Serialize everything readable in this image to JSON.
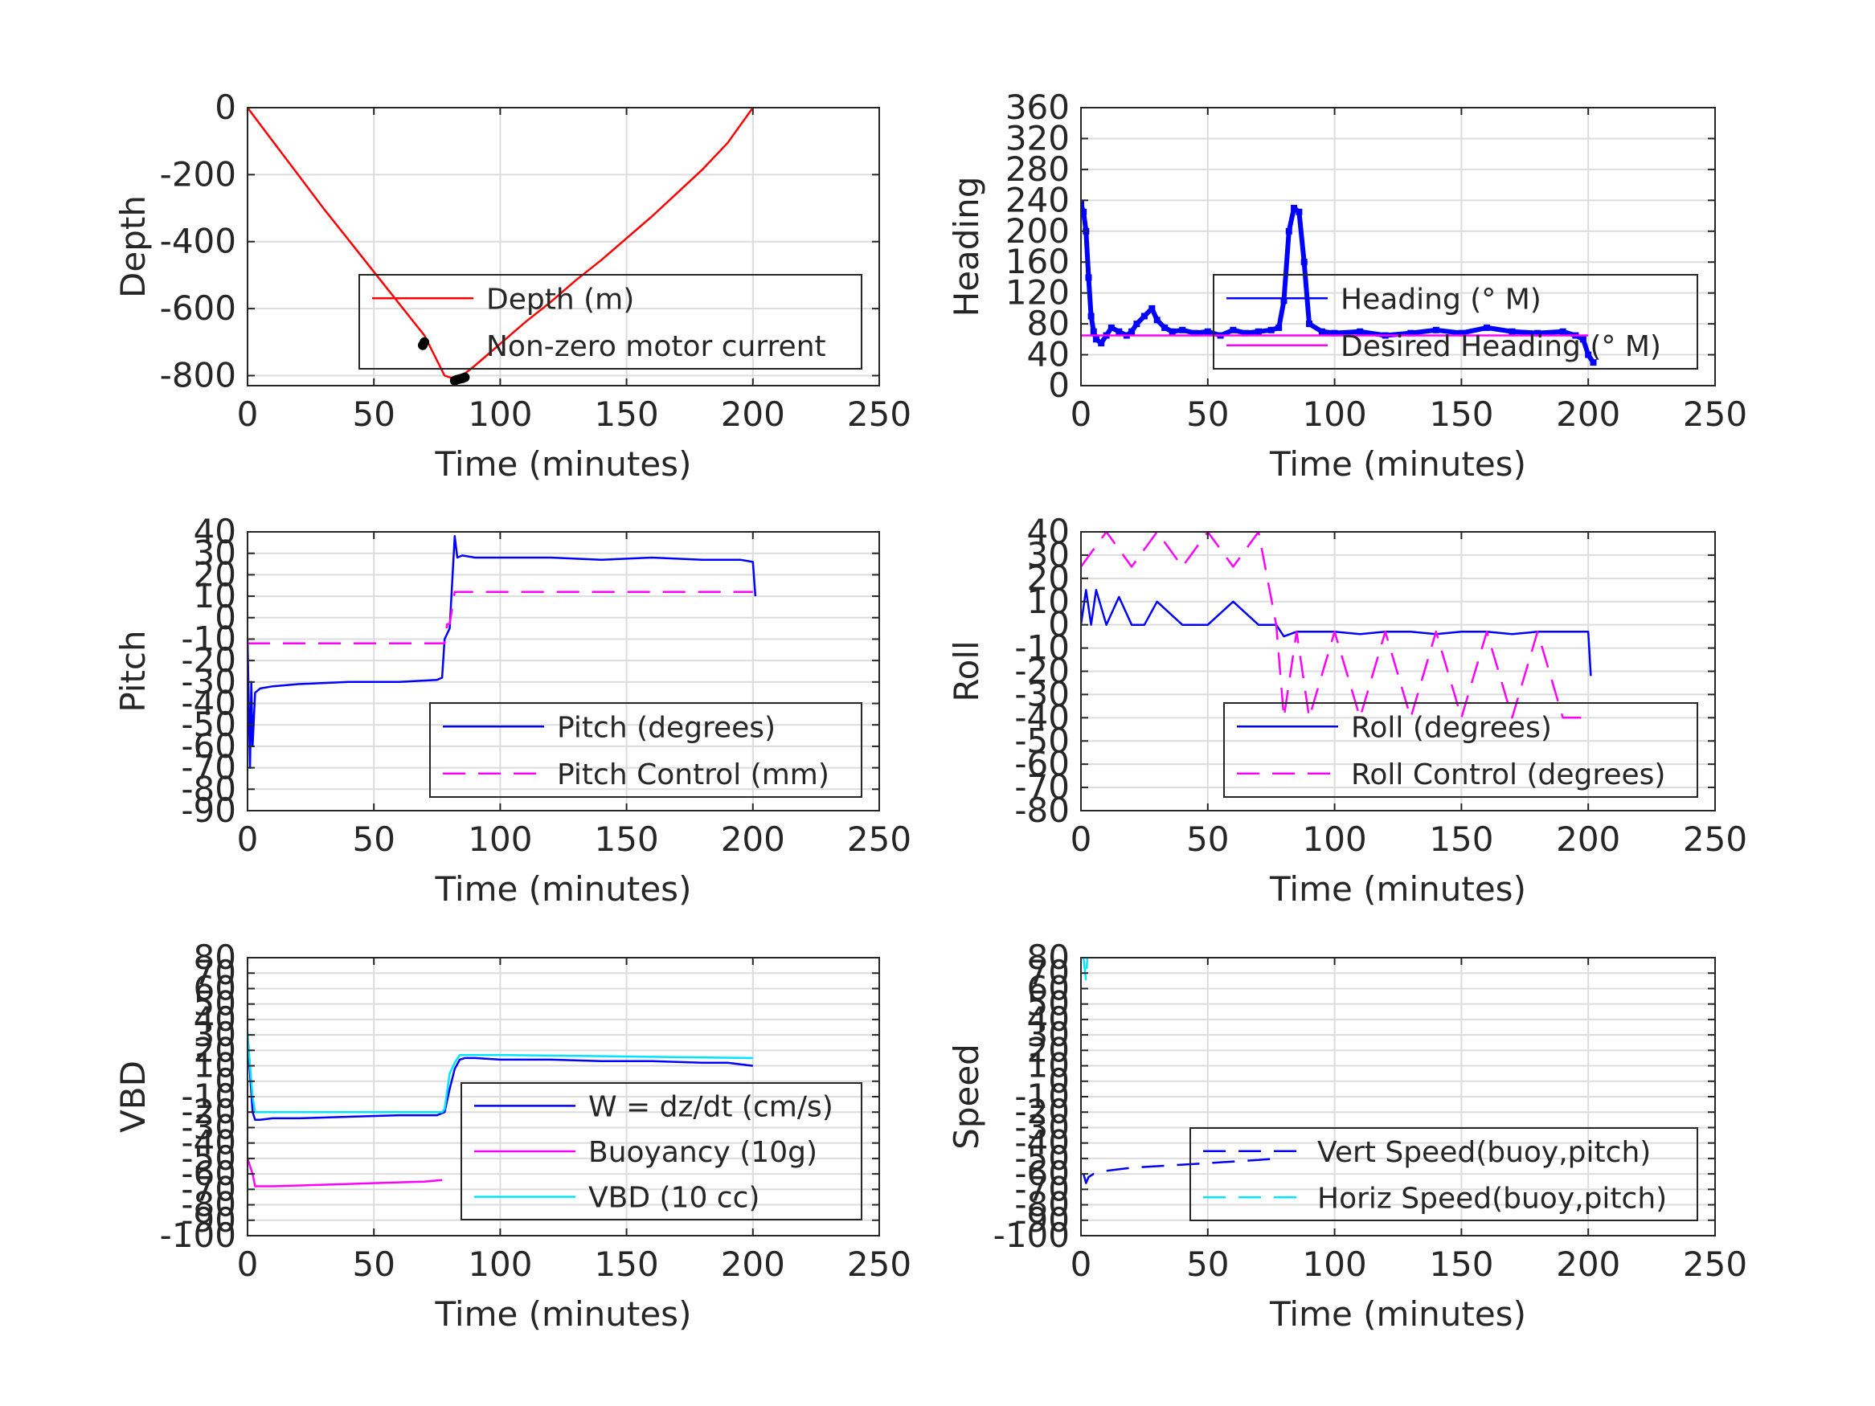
{
  "chart_data": [
    {
      "type": "line",
      "xlabel": "Time (minutes)",
      "ylabel": "Depth",
      "xlim": [
        0,
        250
      ],
      "ylim": [
        -830,
        0
      ],
      "xticks": [
        0,
        50,
        100,
        150,
        200,
        250
      ],
      "yticks": [
        0,
        -200,
        -400,
        -600,
        -800
      ],
      "ytick_labels": [
        "0",
        "-200",
        "-400",
        "-600",
        "-800"
      ],
      "grid": true,
      "legend_placement": "center-right",
      "series": [
        {
          "name": "Depth (m)",
          "color": "#ff0000",
          "style": "solid",
          "x": [
            0,
            10,
            20,
            30,
            40,
            50,
            60,
            70,
            78,
            82,
            85,
            90,
            100,
            110,
            120,
            130,
            140,
            150,
            160,
            170,
            180,
            190,
            200
          ],
          "y": [
            0,
            -100,
            -200,
            -300,
            -395,
            -490,
            -585,
            -680,
            -800,
            -810,
            -800,
            -770,
            -705,
            -640,
            -580,
            -515,
            -455,
            -390,
            -325,
            -255,
            -185,
            -105,
            0
          ]
        },
        {
          "name": "Non-zero motor current",
          "color": "#000000",
          "style": "points",
          "x": [
            70,
            82,
            83,
            84,
            85,
            86
          ],
          "y": [
            -700,
            -815,
            -812,
            -810,
            -808,
            -805
          ]
        }
      ]
    },
    {
      "type": "line",
      "xlabel": "Time (minutes)",
      "ylabel": "Heading",
      "xlim": [
        0,
        250
      ],
      "ylim": [
        0,
        360
      ],
      "xticks": [
        0,
        50,
        100,
        150,
        200,
        250
      ],
      "yticks": [
        0,
        40,
        80,
        120,
        160,
        200,
        240,
        280,
        320,
        360
      ],
      "ytick_labels": [
        "0",
        "40",
        "80",
        "120",
        "160",
        "200",
        "240",
        "280",
        "320",
        "360"
      ],
      "grid": true,
      "legend_placement": "center-right",
      "series": [
        {
          "name": "Heading (° M)",
          "color": "#0000ff",
          "style": "dots",
          "x": [
            0,
            1,
            2,
            3,
            4,
            5,
            6,
            8,
            10,
            12,
            15,
            18,
            20,
            22,
            25,
            28,
            30,
            33,
            36,
            40,
            45,
            50,
            55,
            60,
            65,
            70,
            75,
            78,
            80,
            82,
            84,
            86,
            88,
            90,
            95,
            100,
            110,
            120,
            130,
            140,
            150,
            160,
            170,
            180,
            190,
            195,
            198,
            200,
            202
          ],
          "y": [
            235,
            225,
            200,
            140,
            90,
            70,
            60,
            55,
            65,
            75,
            70,
            65,
            70,
            80,
            90,
            100,
            85,
            75,
            70,
            72,
            68,
            70,
            65,
            72,
            68,
            70,
            72,
            75,
            110,
            200,
            230,
            225,
            160,
            80,
            70,
            68,
            70,
            65,
            68,
            72,
            68,
            75,
            70,
            68,
            70,
            65,
            60,
            40,
            30
          ]
        },
        {
          "name": "Desired Heading (° M)",
          "color": "#ff00ff",
          "style": "solid",
          "x": [
            0,
            200
          ],
          "y": [
            65,
            65
          ]
        }
      ]
    },
    {
      "type": "line",
      "xlabel": "Time (minutes)",
      "ylabel": "Pitch",
      "xlim": [
        0,
        250
      ],
      "ylim": [
        -90,
        40
      ],
      "xticks": [
        0,
        50,
        100,
        150,
        200,
        250
      ],
      "yticks": [
        40,
        30,
        20,
        10,
        0,
        -10,
        -20,
        -30,
        -40,
        -50,
        -60,
        -70,
        -80,
        -90
      ],
      "ytick_labels": [
        "40",
        "30",
        "20",
        "10",
        "0",
        "-10",
        "-20",
        "-30",
        "-40",
        "-50",
        "-60",
        "-70",
        "-80",
        "-90"
      ],
      "grid": true,
      "legend_placement": "lower-right",
      "series": [
        {
          "name": "Pitch (degrees)",
          "color": "#0000ff",
          "style": "solid",
          "x": [
            0,
            1,
            1.5,
            2,
            3,
            5,
            10,
            20,
            40,
            60,
            75,
            77,
            78,
            80,
            82,
            83,
            85,
            90,
            100,
            120,
            140,
            160,
            180,
            195,
            200,
            201
          ],
          "y": [
            -10,
            -70,
            -30,
            -60,
            -35,
            -33,
            -32,
            -31,
            -30,
            -30,
            -29,
            -28,
            -10,
            -5,
            38,
            28,
            29,
            28,
            28,
            28,
            27,
            28,
            27,
            27,
            26,
            10
          ]
        },
        {
          "name": "Pitch Control (mm)",
          "color": "#ff00ff",
          "style": "dashed",
          "x": [
            0,
            78,
            79,
            80,
            82,
            83,
            200
          ],
          "y": [
            -12,
            -12,
            -3,
            -3,
            12,
            12,
            12
          ]
        }
      ]
    },
    {
      "type": "line",
      "xlabel": "Time (minutes)",
      "ylabel": "Roll",
      "xlim": [
        0,
        250
      ],
      "ylim": [
        -80,
        40
      ],
      "xticks": [
        0,
        50,
        100,
        150,
        200,
        250
      ],
      "yticks": [
        40,
        30,
        20,
        10,
        0,
        -10,
        -20,
        -30,
        -40,
        -50,
        -60,
        -70,
        -80
      ],
      "ytick_labels": [
        "40",
        "30",
        "20",
        "10",
        "0",
        "-10",
        "-20",
        "-30",
        "-40",
        "-50",
        "-60",
        "-70",
        "-80"
      ],
      "grid": true,
      "legend_placement": "lower-right",
      "series": [
        {
          "name": "Roll (degrees)",
          "color": "#0000ff",
          "style": "solid",
          "x": [
            0,
            2,
            4,
            6,
            10,
            15,
            20,
            25,
            30,
            40,
            50,
            60,
            70,
            77,
            80,
            85,
            90,
            100,
            110,
            120,
            130,
            140,
            150,
            160,
            170,
            180,
            190,
            200,
            201
          ],
          "y": [
            0,
            15,
            0,
            15,
            0,
            12,
            0,
            0,
            10,
            0,
            0,
            10,
            0,
            0,
            -5,
            -3,
            -3,
            -3,
            -4,
            -3,
            -3,
            -4,
            -3,
            -3,
            -4,
            -3,
            -3,
            -3,
            -22
          ]
        },
        {
          "name": "Roll Control (degrees)",
          "color": "#ff00ff",
          "style": "dashed",
          "x": [
            0,
            10,
            20,
            30,
            40,
            50,
            60,
            70,
            77,
            80,
            85,
            90,
            100,
            110,
            120,
            130,
            140,
            150,
            160,
            170,
            180,
            190,
            200
          ],
          "y": [
            25,
            40,
            25,
            40,
            25,
            40,
            25,
            40,
            0,
            -40,
            -3,
            -40,
            -3,
            -40,
            -3,
            -40,
            -3,
            -40,
            -3,
            -40,
            -3,
            -40,
            -40
          ]
        }
      ]
    },
    {
      "type": "line",
      "xlabel": "Time (minutes)",
      "ylabel": "VBD",
      "xlim": [
        0,
        250
      ],
      "ylim": [
        -100,
        80
      ],
      "xticks": [
        0,
        50,
        100,
        150,
        200,
        250
      ],
      "yticks": [
        80,
        70,
        60,
        50,
        40,
        30,
        20,
        10,
        0,
        -10,
        -20,
        -30,
        -40,
        -50,
        -60,
        -70,
        -80,
        -90,
        -100
      ],
      "ytick_labels": [
        "80",
        "70",
        "60",
        "50",
        "40",
        "30",
        "20",
        "10",
        "0",
        "-10",
        "-20",
        "-30",
        "-40",
        "-50",
        "-60",
        "-70",
        "-80",
        "-90",
        "-100"
      ],
      "grid": true,
      "legend_placement": "center-right",
      "series": [
        {
          "name": "W = dz/dt (cm/s)",
          "color": "#0000ff",
          "style": "solid",
          "x": [
            0,
            1,
            2,
            3,
            5,
            10,
            20,
            40,
            60,
            75,
            78,
            80,
            82,
            84,
            86,
            90,
            100,
            120,
            140,
            160,
            180,
            190,
            200
          ],
          "y": [
            30,
            5,
            -20,
            -25,
            -25,
            -24,
            -24,
            -23,
            -22,
            -22,
            -20,
            -5,
            8,
            14,
            15,
            15,
            14,
            14,
            13,
            13,
            12,
            12,
            10
          ]
        },
        {
          "name": "Buoyancy (10g)",
          "color": "#ff00ff",
          "style": "solid",
          "x": [
            0,
            1,
            2,
            3,
            10,
            30,
            50,
            70,
            77
          ],
          "y": [
            -50,
            -55,
            -60,
            -68,
            -68,
            -67,
            -66,
            -65,
            -64
          ]
        },
        {
          "name": "VBD (10 cc)",
          "color": "#00e5ff",
          "style": "solid",
          "x": [
            0,
            1,
            2,
            3,
            5,
            20,
            40,
            60,
            77,
            78,
            80,
            82,
            84,
            86,
            100,
            150,
            200
          ],
          "y": [
            32,
            10,
            -10,
            -20,
            -20,
            -20,
            -20,
            -20,
            -20,
            -18,
            5,
            12,
            17,
            17,
            17,
            16,
            15
          ]
        }
      ]
    },
    {
      "type": "line",
      "xlabel": "Time (minutes)",
      "ylabel": "Speed",
      "xlim": [
        0,
        250
      ],
      "ylim": [
        -100,
        80
      ],
      "xticks": [
        0,
        50,
        100,
        150,
        200,
        250
      ],
      "yticks": [
        80,
        70,
        60,
        50,
        40,
        30,
        20,
        10,
        0,
        -10,
        -20,
        -30,
        -40,
        -50,
        -60,
        -70,
        -80,
        -90,
        -100
      ],
      "ytick_labels": [
        "80",
        "70",
        "60",
        "50",
        "40",
        "30",
        "20",
        "10",
        "0",
        "-10",
        "-20",
        "-30",
        "-40",
        "-50",
        "-60",
        "-70",
        "-80",
        "-90",
        "-100"
      ],
      "grid": true,
      "legend_placement": "lower-right",
      "series": [
        {
          "name": "Vert Speed(buoy,pitch)",
          "color": "#0000ff",
          "style": "dashed",
          "x": [
            1,
            2,
            3,
            5,
            10,
            20,
            30,
            40,
            50,
            60,
            70,
            77
          ],
          "y": [
            -60,
            -66,
            -62,
            -60,
            -58,
            -56,
            -55,
            -54,
            -53,
            -52,
            -51,
            -50
          ]
        },
        {
          "name": "Horiz Speed(buoy,pitch)",
          "color": "#00e5ff",
          "style": "dashed",
          "x": [
            1,
            2,
            2.5
          ],
          "y": [
            80,
            65,
            80
          ]
        }
      ]
    }
  ]
}
